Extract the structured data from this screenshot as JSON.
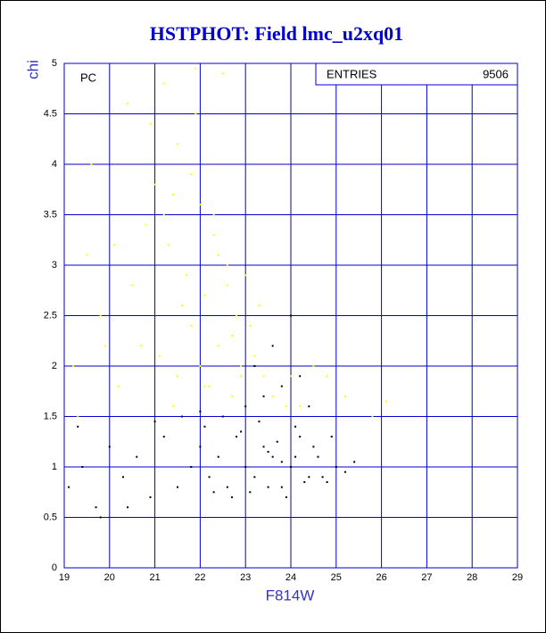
{
  "chart_data": {
    "type": "scatter",
    "title": "HSTPHOT: Field lmc_u2xq01",
    "x_label": "F814W",
    "y_label": "chi",
    "annotation": "PC",
    "stats": {
      "label": "ENTRIES",
      "value": 9506
    },
    "xlim": [
      19,
      29
    ],
    "xticks": [
      19,
      20,
      21,
      22,
      23,
      24,
      25,
      26,
      27,
      28,
      29
    ],
    "ylim": [
      0,
      5
    ],
    "yticks": [
      0,
      0.5,
      1,
      1.5,
      2,
      2.5,
      3,
      3.5,
      4,
      4.5,
      5
    ],
    "grid": true,
    "grid_color": "#0000cc",
    "series": [
      {
        "color": "#ffff00",
        "x": [
          21.2,
          21.5,
          21.8,
          22.0,
          22.3,
          21.4,
          21.9,
          22.6,
          22.1,
          21.7,
          22.8,
          23.1,
          22.4,
          21.3,
          22.9,
          23.4,
          22.2,
          21.6,
          23.6,
          22.7,
          23.9,
          22.5,
          21.1,
          20.8,
          20.5,
          20.2,
          19.8,
          19.5,
          19.3,
          20.9,
          21.0,
          22.0,
          22.6,
          23.2,
          23.8,
          24.2,
          24.5,
          24.8,
          25.2,
          25.8,
          26.1,
          19.2,
          19.6,
          20.4,
          21.9,
          22.3,
          21.5,
          22.7,
          23.3,
          20.7,
          21.4,
          22.1,
          22.9,
          21.8,
          22.4,
          23.0,
          24.0,
          21.2,
          20.1,
          19.9
        ],
        "y": [
          4.8,
          4.2,
          3.9,
          3.6,
          3.3,
          3.7,
          4.5,
          3.0,
          2.7,
          2.9,
          2.5,
          2.4,
          2.2,
          3.2,
          2.0,
          1.9,
          1.8,
          2.6,
          1.7,
          2.3,
          1.6,
          4.9,
          2.1,
          3.4,
          2.8,
          1.8,
          2.5,
          3.1,
          1.5,
          4.4,
          3.8,
          2.0,
          2.8,
          2.1,
          1.8,
          1.6,
          2.0,
          1.9,
          1.7,
          1.5,
          1.65,
          2.0,
          4.0,
          4.6,
          4.95,
          3.5,
          1.9,
          1.7,
          2.6,
          2.2,
          1.6,
          1.8,
          1.9,
          2.4,
          3.1,
          2.9,
          1.9,
          3.5,
          3.2,
          2.2
        ]
      },
      {
        "color": "#000000",
        "x": [
          19.1,
          19.4,
          19.7,
          20.0,
          20.3,
          20.6,
          20.9,
          21.2,
          21.5,
          21.8,
          22.0,
          22.2,
          22.4,
          22.6,
          22.8,
          23.0,
          23.2,
          23.4,
          23.6,
          23.8,
          24.0,
          24.2,
          24.4,
          24.6,
          24.8,
          25.0,
          25.2,
          25.4,
          22.1,
          22.5,
          22.9,
          23.3,
          23.7,
          24.1,
          24.5,
          24.9,
          22.3,
          22.7,
          23.1,
          23.5,
          23.9,
          24.3,
          24.7,
          23.0,
          23.4,
          23.8,
          24.2,
          23.6,
          24.0,
          23.2,
          19.3,
          19.8,
          20.4,
          21.0,
          21.6,
          22.0,
          23.5,
          24.1,
          23.8,
          24.4
        ],
        "y": [
          0.8,
          1.0,
          0.6,
          1.2,
          0.9,
          1.1,
          0.7,
          1.3,
          0.8,
          1.0,
          1.2,
          0.9,
          1.1,
          0.8,
          1.3,
          1.0,
          0.9,
          1.2,
          1.1,
          0.8,
          1.0,
          1.3,
          0.9,
          1.1,
          0.85,
          1.0,
          0.95,
          1.05,
          1.4,
          1.5,
          1.35,
          1.45,
          1.25,
          1.4,
          1.2,
          1.3,
          0.75,
          0.7,
          0.75,
          0.8,
          0.7,
          0.85,
          0.9,
          1.6,
          1.7,
          1.8,
          1.9,
          2.2,
          2.5,
          2.0,
          1.4,
          0.5,
          0.6,
          1.45,
          1.5,
          1.55,
          1.15,
          1.1,
          1.05,
          1.6
        ]
      }
    ]
  }
}
